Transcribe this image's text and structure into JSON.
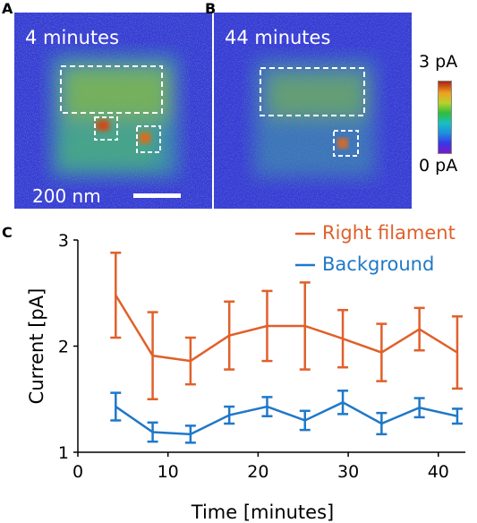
{
  "panels": {
    "a": {
      "letter": "A",
      "time": "4 minutes",
      "scalebar": "200 nm"
    },
    "b": {
      "letter": "B",
      "time": "44 minutes"
    },
    "c": {
      "letter": "C"
    }
  },
  "colorbar": {
    "max_label": "3 pA",
    "min_label": "0 pA"
  },
  "colors": {
    "right_filament": "#e0602a",
    "background": "#1f78c8",
    "afm_base": "#3a3ad8",
    "selection_box": "#ffffff"
  },
  "chart_data": {
    "type": "line",
    "xlabel": "Time [minutes]",
    "ylabel": "Current [pA]",
    "xlim": [
      0,
      43
    ],
    "ylim": [
      1,
      3
    ],
    "xticks": [
      "0",
      "10",
      "20",
      "30",
      "40"
    ],
    "yticks": [
      "1",
      "2",
      "3"
    ],
    "legend_position": "top-right",
    "series": [
      {
        "name": "Right filament",
        "color": "#e0602a",
        "x": [
          4.2,
          8.3,
          12.5,
          16.8,
          21.0,
          25.2,
          29.4,
          33.7,
          37.9,
          42.1
        ],
        "y": [
          2.48,
          1.91,
          1.86,
          2.1,
          2.19,
          2.19,
          2.07,
          1.94,
          2.16,
          1.94
        ],
        "err": [
          0.4,
          0.41,
          0.22,
          0.32,
          0.33,
          0.41,
          0.27,
          0.27,
          0.2,
          0.34
        ]
      },
      {
        "name": "Background",
        "color": "#1f78c8",
        "x": [
          4.2,
          8.3,
          12.5,
          16.8,
          21.0,
          25.2,
          29.4,
          33.7,
          37.9,
          42.1
        ],
        "y": [
          1.43,
          1.19,
          1.17,
          1.35,
          1.43,
          1.3,
          1.47,
          1.27,
          1.42,
          1.34
        ],
        "err": [
          0.13,
          0.09,
          0.08,
          0.08,
          0.09,
          0.09,
          0.11,
          0.1,
          0.09,
          0.07
        ]
      }
    ]
  }
}
